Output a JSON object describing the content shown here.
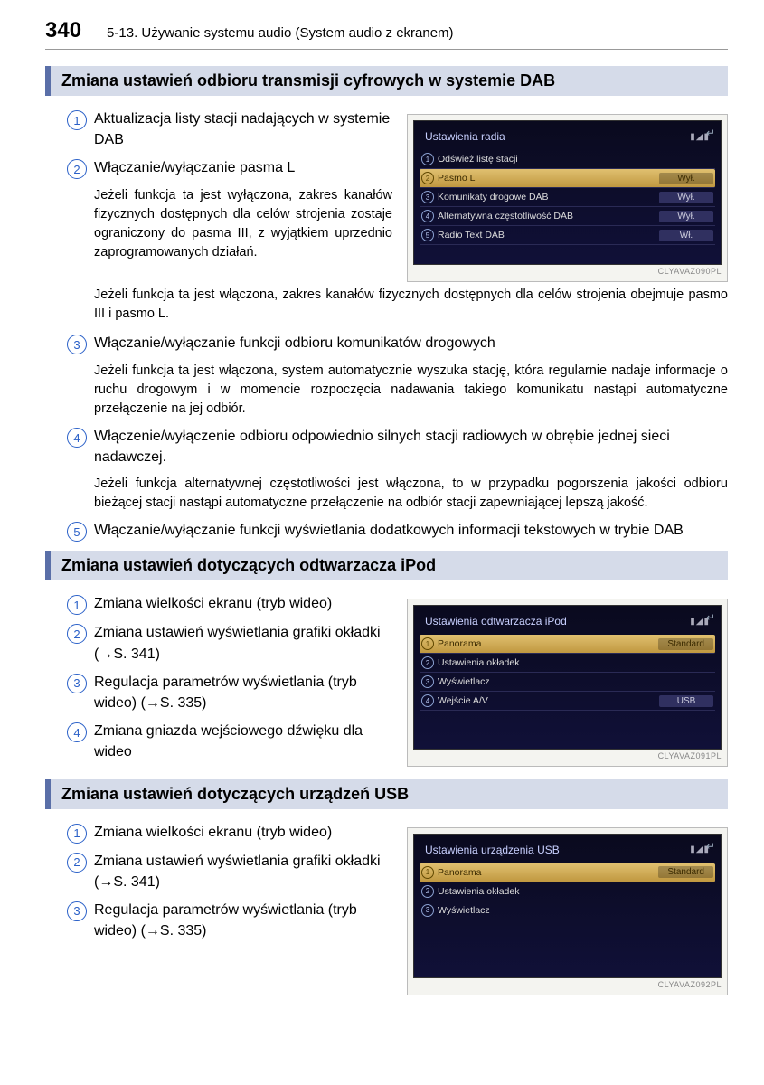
{
  "header": {
    "page_number": "340",
    "title": "5-13. Używanie systemu audio (System audio z ekranem)"
  },
  "sections": [
    {
      "heading": "Zmiana ustawień odbioru transmisji cyfrowych w systemie DAB",
      "screenshot": {
        "title": "Ustawienia radia",
        "status": "▮◢▮",
        "rows": [
          {
            "n": "1",
            "label": "Odśwież listę stacji",
            "value": "",
            "hl": false
          },
          {
            "n": "2",
            "label": "Pasmo L",
            "value": "Wył.",
            "hl": true
          },
          {
            "n": "3",
            "label": "Komunikaty drogowe DAB",
            "value": "Wył.",
            "hl": false
          },
          {
            "n": "4",
            "label": "Alternatywna częstotliwość DAB",
            "value": "Wył.",
            "hl": false
          },
          {
            "n": "5",
            "label": "Radio Text DAB",
            "value": "Wł.",
            "hl": false
          }
        ],
        "caption": "CLYAVAZ090PL"
      },
      "items": [
        {
          "n": "1",
          "title": "Aktualizacja listy stacji nadających w systemie DAB"
        },
        {
          "n": "2",
          "title": "Włączanie/wyłączanie pasma L",
          "body": "Jeżeli funkcja ta jest wyłączona, zakres kanałów fizycznych dostępnych dla celów strojenia zostaje ograniczony do pasma III, z wyjątkiem uprzednio zaprogramowanych działań."
        }
      ],
      "below": "Jeżeli funkcja ta jest włączona, zakres kanałów fizycznych dostępnych dla celów strojenia obejmuje pasmo III i pasmo L.",
      "items_after": [
        {
          "n": "3",
          "title": "Włączanie/wyłączanie funkcji odbioru komunikatów drogowych",
          "body": "Jeżeli funkcja ta jest włączona, system automatycznie wyszuka stację, która regularnie nadaje informacje o ruchu drogowym i w momencie rozpoczęcia nadawania takiego komunikatu nastąpi automatyczne przełączenie na jej odbiór."
        },
        {
          "n": "4",
          "title": "Włączenie/wyłączenie odbioru odpowiednio silnych stacji radiowych w obrębie jednej sieci nadawczej.",
          "body": "Jeżeli funkcja alternatywnej częstotliwości jest włączona, to w przypadku pogorszenia jakości odbioru bieżącej stacji nastąpi automatyczne przełączenie na odbiór stacji zapewniającej lepszą jakość."
        },
        {
          "n": "5",
          "title": "Włączanie/wyłączanie funkcji wyświetlania dodatkowych informacji tekstowych w trybie DAB"
        }
      ]
    },
    {
      "heading": "Zmiana ustawień dotyczących odtwarzacza iPod",
      "screenshot": {
        "title": "Ustawienia odtwarzacza iPod",
        "status": "▮◢▮",
        "rows": [
          {
            "n": "1",
            "label": "Panorama",
            "value": "Standard",
            "hl": true
          },
          {
            "n": "2",
            "label": "Ustawienia okładek",
            "value": "",
            "hl": false
          },
          {
            "n": "3",
            "label": "Wyświetlacz",
            "value": "",
            "hl": false
          },
          {
            "n": "4",
            "label": "Wejście A/V",
            "value": "USB",
            "hl": false
          }
        ],
        "caption": "CLYAVAZ091PL"
      },
      "items": [
        {
          "n": "1",
          "title": "Zmiana wielkości ekranu (tryb wideo)"
        },
        {
          "n": "2",
          "title": "Zmiana ustawień wyświetlania grafiki okładki (→S. 341)"
        },
        {
          "n": "3",
          "title": "Regulacja parametrów wyświetlania (tryb wideo) (→S. 335)"
        },
        {
          "n": "4",
          "title": "Zmiana gniazda wejściowego dźwięku dla wideo"
        }
      ]
    },
    {
      "heading": "Zmiana ustawień dotyczących urządzeń USB",
      "screenshot": {
        "title": "Ustawienia urządzenia USB",
        "status": "▮◢▮",
        "rows": [
          {
            "n": "1",
            "label": "Panorama",
            "value": "Standard",
            "hl": true
          },
          {
            "n": "2",
            "label": "Ustawienia okładek",
            "value": "",
            "hl": false
          },
          {
            "n": "3",
            "label": "Wyświetlacz",
            "value": "",
            "hl": false
          }
        ],
        "caption": "CLYAVAZ092PL"
      },
      "items": [
        {
          "n": "1",
          "title": "Zmiana wielkości ekranu (tryb wideo)"
        },
        {
          "n": "2",
          "title": "Zmiana ustawień wyświetlania grafiki okładki (→S. 341)"
        },
        {
          "n": "3",
          "title": "Regulacja parametrów wyświetlania (tryb wideo) (→S. 335)"
        }
      ]
    }
  ]
}
